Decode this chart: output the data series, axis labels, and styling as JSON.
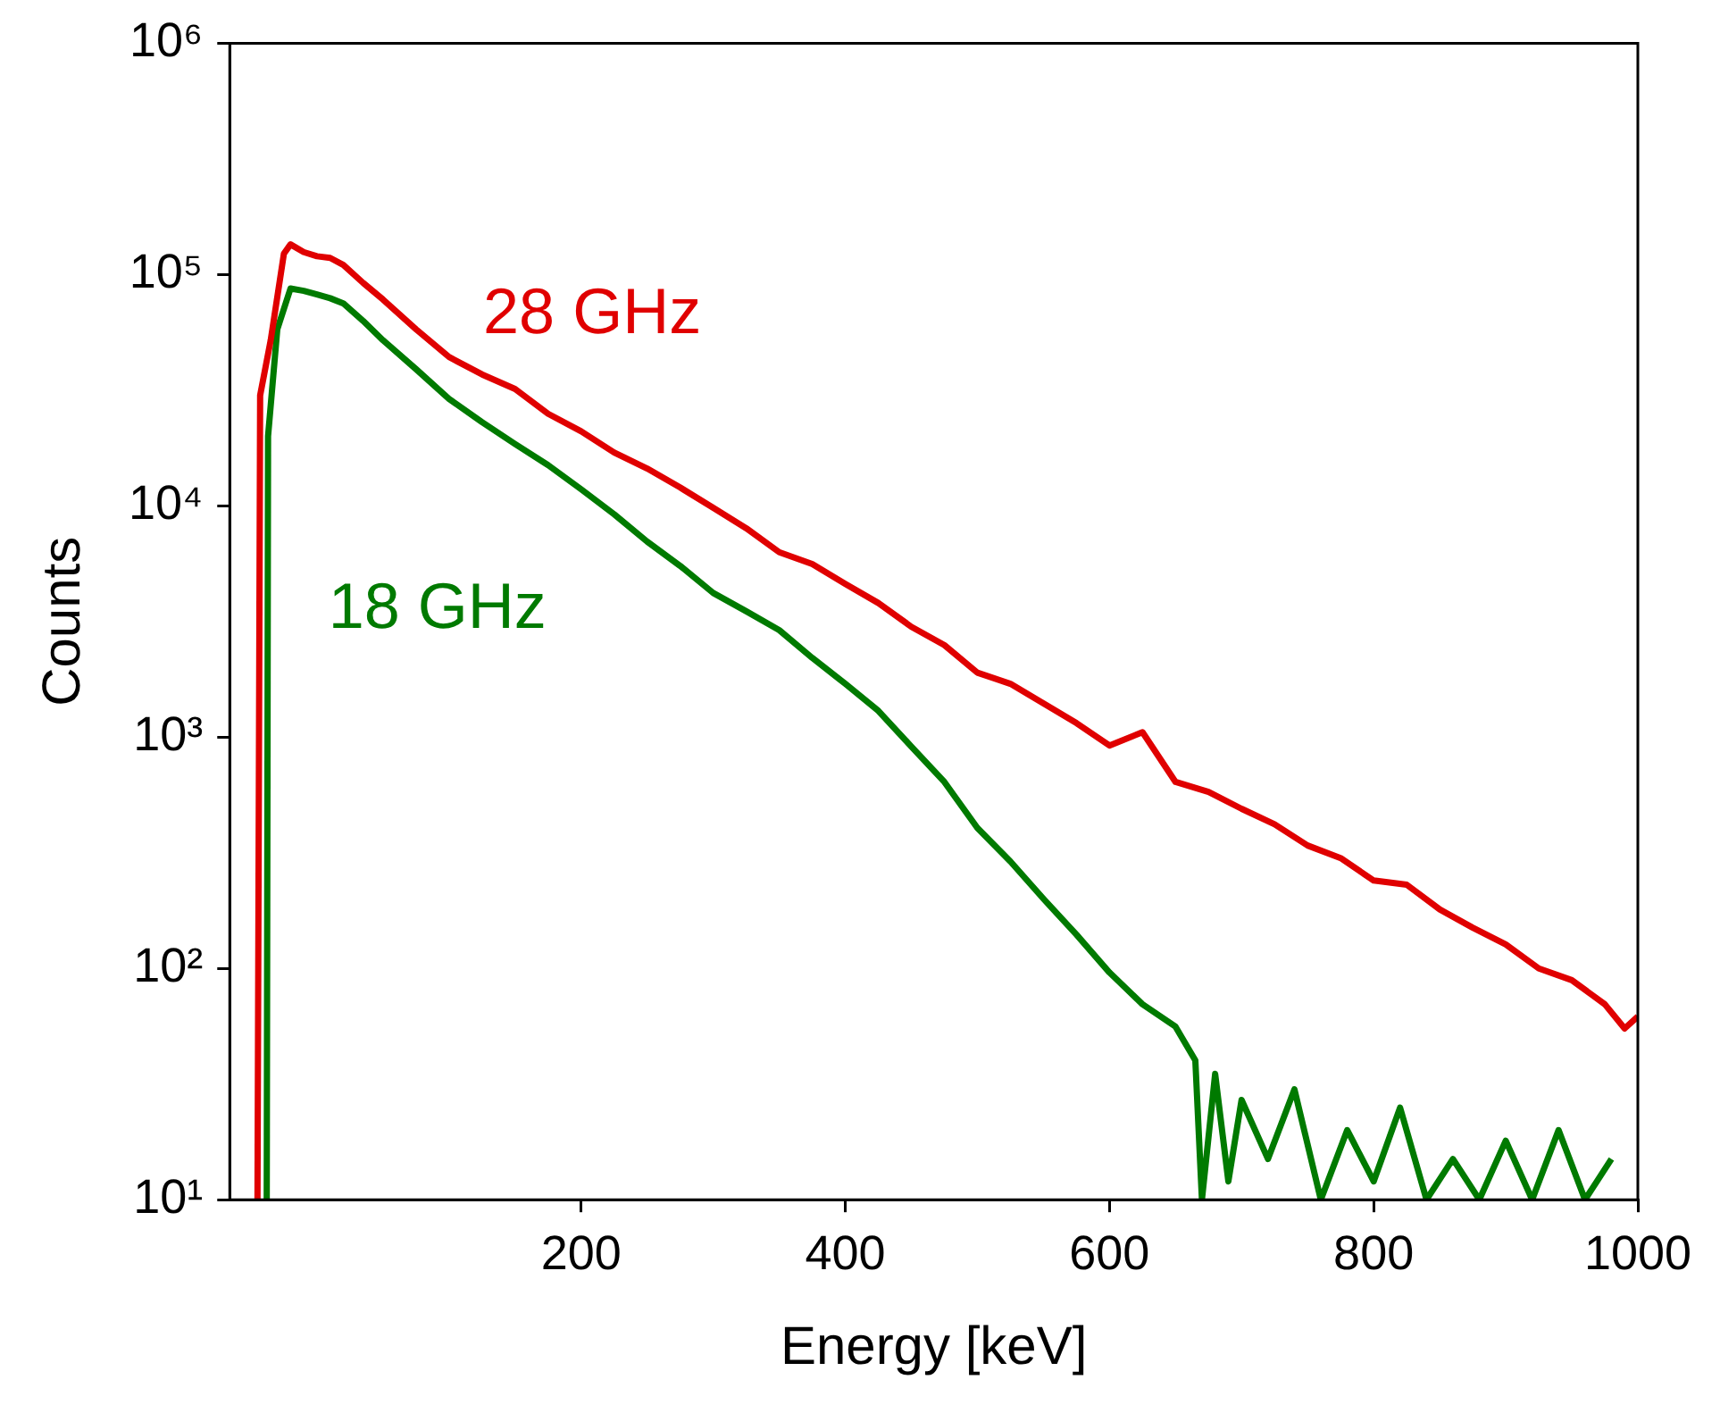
{
  "chart_data": {
    "type": "line",
    "xlabel": "Energy [keV]",
    "ylabel": "Counts",
    "log": "y",
    "grid": false,
    "legend": false,
    "marker": "none",
    "line_style": "solid",
    "xlim": [
      -66,
      1000
    ],
    "xticks": [
      200,
      400,
      600,
      800,
      1000
    ],
    "ylim": [
      10,
      1000000
    ],
    "yticks": [
      {
        "value": 10,
        "label": "10¹"
      },
      {
        "value": 100,
        "label": "10²"
      },
      {
        "value": 1000,
        "label": "10³"
      },
      {
        "value": 10000,
        "label": "10⁴"
      },
      {
        "value": 100000,
        "label": "10⁵"
      },
      {
        "value": 1000000,
        "label": "10⁶"
      }
    ],
    "series": [
      {
        "name": "28 GHz",
        "color": "#e00000",
        "x": [
          -45,
          -43,
          -35,
          -25,
          -20,
          -10,
          0,
          10,
          20,
          35,
          50,
          75,
          100,
          125,
          150,
          175,
          200,
          225,
          250,
          275,
          300,
          325,
          350,
          375,
          400,
          425,
          450,
          475,
          500,
          525,
          550,
          575,
          600,
          625,
          650,
          675,
          700,
          725,
          750,
          775,
          800,
          825,
          850,
          875,
          900,
          925,
          950,
          975,
          990,
          1000
        ],
        "values": [
          10,
          30000,
          52000,
          123000,
          135000,
          125000,
          120000,
          118000,
          110000,
          92000,
          78000,
          58000,
          44000,
          37000,
          32000,
          25000,
          21000,
          17000,
          14500,
          12000,
          9800,
          8000,
          6300,
          5600,
          4600,
          3800,
          3000,
          2500,
          1900,
          1700,
          1400,
          1150,
          920,
          1050,
          640,
          580,
          490,
          420,
          340,
          300,
          240,
          230,
          180,
          150,
          127,
          100,
          89,
          70,
          55,
          62
        ]
      },
      {
        "name": "18 GHz",
        "color": "#007a00",
        "x": [
          -38,
          -37,
          -30,
          -20,
          -10,
          0,
          10,
          20,
          35,
          50,
          75,
          100,
          125,
          150,
          175,
          200,
          225,
          250,
          275,
          300,
          325,
          350,
          375,
          400,
          425,
          450,
          475,
          500,
          525,
          550,
          575,
          600,
          625,
          650,
          665,
          670,
          680,
          690,
          700,
          720,
          740,
          760,
          780,
          800,
          820,
          840,
          860,
          880,
          900,
          920,
          940,
          960,
          980
        ],
        "values": [
          10,
          20000,
          58000,
          87000,
          85000,
          82000,
          79000,
          75000,
          63000,
          52000,
          39000,
          29000,
          23000,
          18500,
          15000,
          11800,
          9200,
          7000,
          5500,
          4200,
          3500,
          2900,
          2200,
          1700,
          1300,
          910,
          640,
          405,
          290,
          200,
          140,
          96,
          70,
          56,
          40,
          10,
          35,
          12,
          27,
          15,
          30,
          10,
          20,
          12,
          25,
          10,
          15,
          10,
          18,
          10,
          20,
          10,
          15
        ]
      }
    ]
  }
}
